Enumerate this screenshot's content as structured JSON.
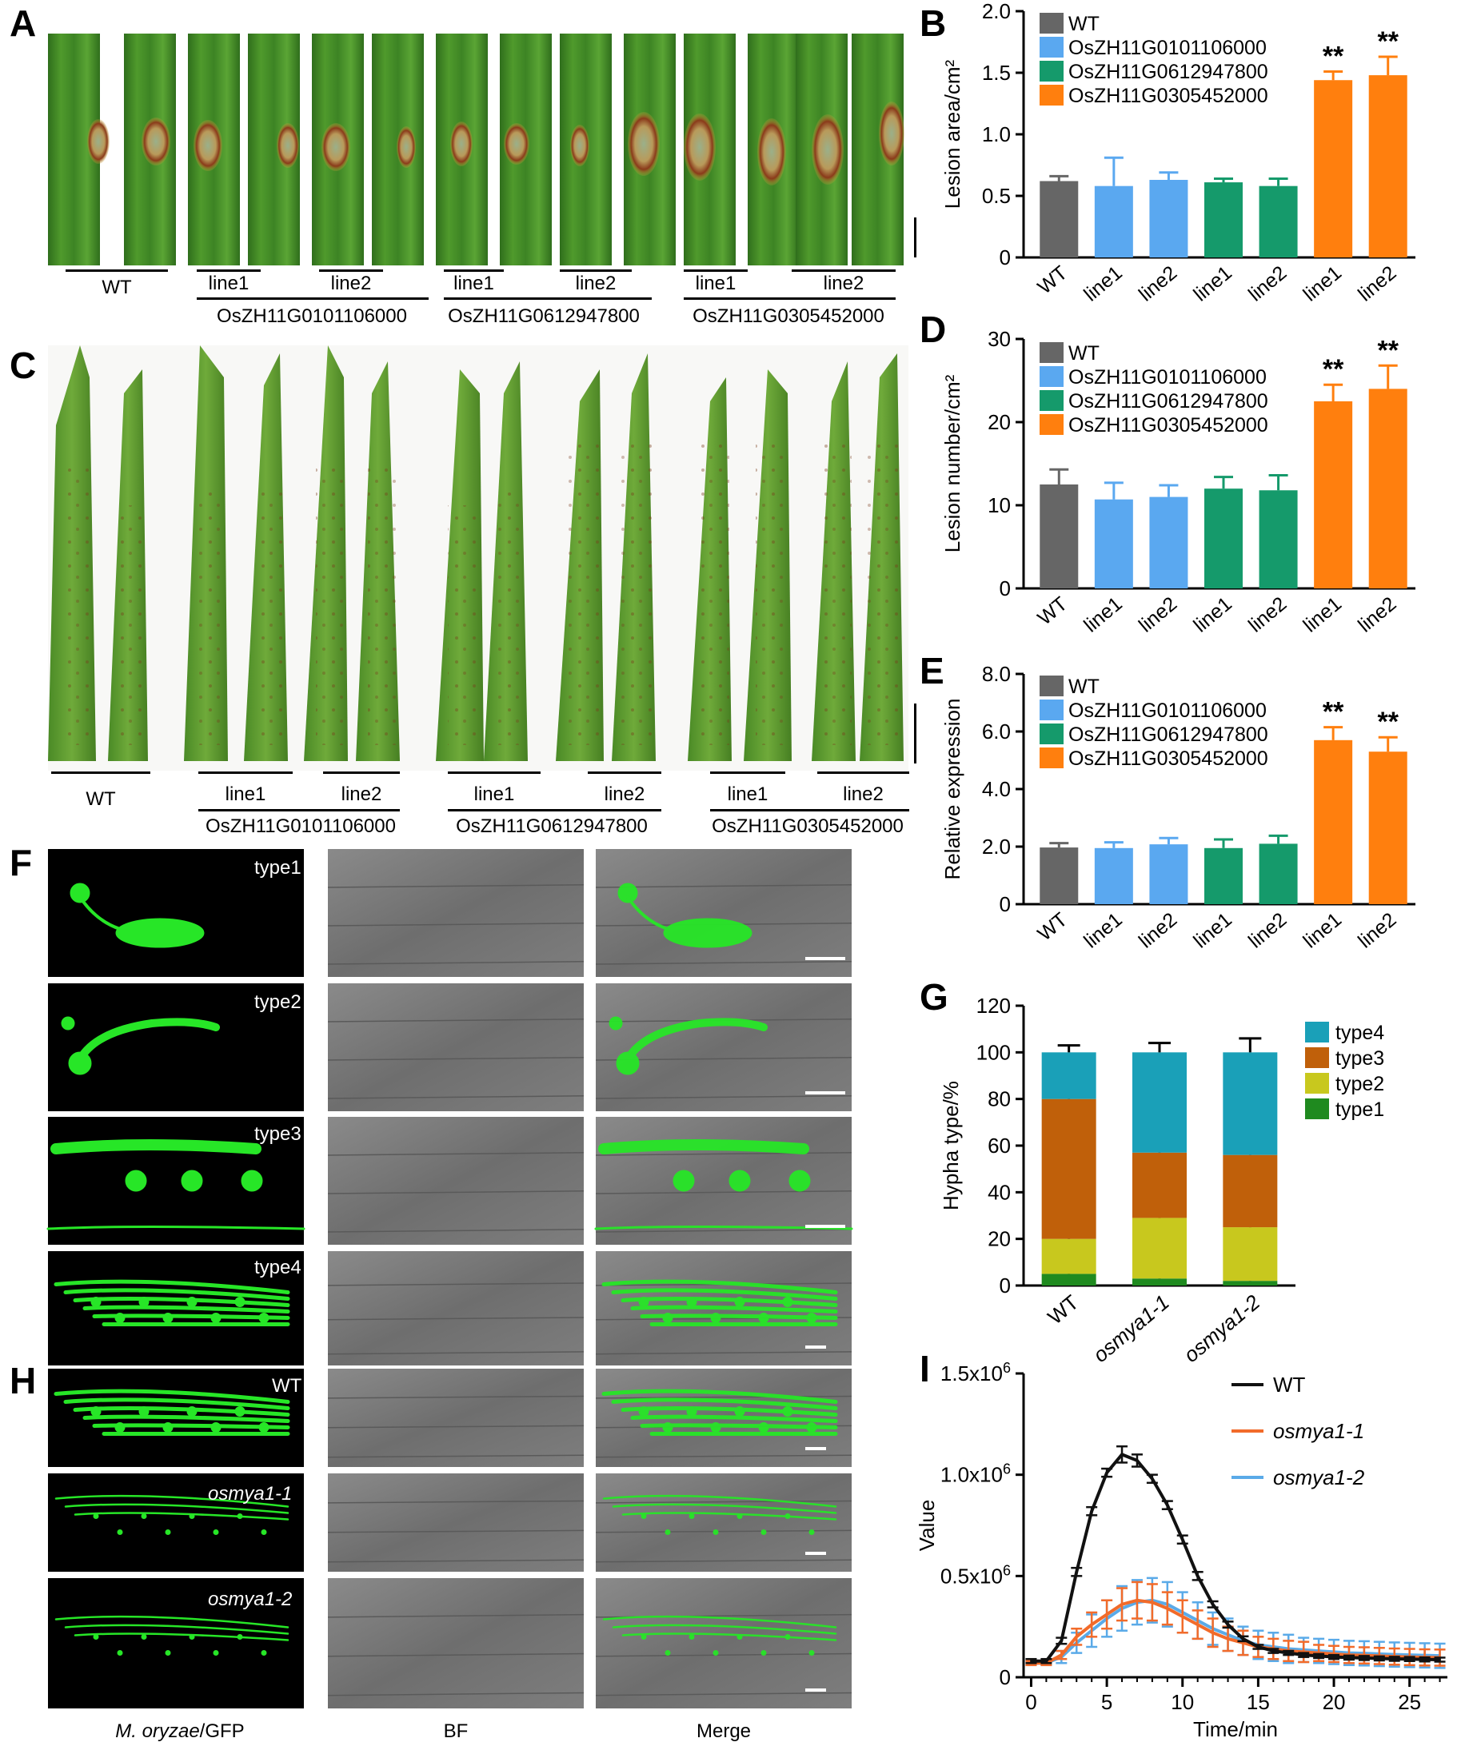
{
  "panels": {
    "A": "A",
    "B": "B",
    "C": "C",
    "D": "D",
    "E": "E",
    "F": "F",
    "G": "G",
    "H": "H",
    "I": "I"
  },
  "labels_A": {
    "wt": "WT",
    "line1": "line1",
    "line2": "line2",
    "gene1": "OsZH11G0101106000",
    "gene2": "OsZH11G0612947800",
    "gene3": "OsZH11G0305452000"
  },
  "micro": {
    "type1": "type1",
    "type2": "type2",
    "type3": "type3",
    "type4": "type4",
    "wt": "WT",
    "osmya1_1": "osmya1-1",
    "osmya1_2": "osmya1-2",
    "col_gfp_italic": "M. oryzae",
    "col_gfp_suffix": "/GFP",
    "col_bf": "BF",
    "col_merge": "Merge"
  },
  "colors": {
    "wt": "#666666",
    "g1": "#5aa8f0",
    "g2": "#159a6b",
    "g3": "#ff7f0e",
    "type1": "#1f8a1f",
    "type2": "#c8c81e",
    "type3": "#c0600a",
    "type4": "#1aa0b8",
    "wt_line": "#111111",
    "osmya1_1_line": "#f26b2a",
    "osmya1_2_line": "#5aaae8"
  },
  "chart_data": [
    {
      "id": "B",
      "type": "bar",
      "ylabel": "Lesion area/cm²",
      "ylim": [
        0,
        2.0
      ],
      "yticks": [
        "0",
        "0.5",
        "1.0",
        "1.5",
        "2.0"
      ],
      "categories": [
        "WT",
        "line1",
        "line2",
        "line1",
        "line2",
        "line1",
        "line2"
      ],
      "values": [
        0.62,
        0.58,
        0.63,
        0.61,
        0.58,
        1.44,
        1.48
      ],
      "errors": [
        0.04,
        0.23,
        0.06,
        0.03,
        0.06,
        0.07,
        0.15
      ],
      "color_groups": [
        "wt",
        "g1",
        "g1",
        "g2",
        "g2",
        "g3",
        "g3"
      ],
      "annotations": [
        "",
        "",
        "",
        "",
        "",
        "**",
        "**"
      ],
      "legend": [
        "WT",
        "OsZH11G0101106000",
        "OsZH11G0612947800",
        "OsZH11G0305452000"
      ]
    },
    {
      "id": "D",
      "type": "bar",
      "ylabel": "Lesion number/cm²",
      "ylim": [
        0,
        30
      ],
      "yticks": [
        "0",
        "10",
        "20",
        "30"
      ],
      "categories": [
        "WT",
        "line1",
        "line2",
        "line1",
        "line2",
        "line1",
        "line2"
      ],
      "values": [
        12.5,
        10.7,
        11.0,
        12.0,
        11.8,
        22.5,
        24.0
      ],
      "errors": [
        1.8,
        2.0,
        1.4,
        1.4,
        1.8,
        2.0,
        2.8
      ],
      "color_groups": [
        "wt",
        "g1",
        "g1",
        "g2",
        "g2",
        "g3",
        "g3"
      ],
      "annotations": [
        "",
        "",
        "",
        "",
        "",
        "**",
        "**"
      ],
      "legend": [
        "WT",
        "OsZH11G0101106000",
        "OsZH11G0612947800",
        "OsZH11G0305452000"
      ]
    },
    {
      "id": "E",
      "type": "bar",
      "ylabel": "Relative expression",
      "ylim": [
        0,
        8.0
      ],
      "yticks": [
        "0",
        "2.0",
        "4.0",
        "6.0",
        "8.0"
      ],
      "categories": [
        "WT",
        "line1",
        "line2",
        "line1",
        "line2",
        "line1",
        "line2"
      ],
      "values": [
        1.97,
        1.95,
        2.08,
        1.95,
        2.1,
        5.7,
        5.3
      ],
      "errors": [
        0.15,
        0.2,
        0.22,
        0.3,
        0.28,
        0.45,
        0.5
      ],
      "color_groups": [
        "wt",
        "g1",
        "g1",
        "g2",
        "g2",
        "g3",
        "g3"
      ],
      "annotations": [
        "",
        "",
        "",
        "",
        "",
        "**",
        "**"
      ],
      "legend": [
        "WT",
        "OsZH11G0101106000",
        "OsZH11G0612947800",
        "OsZH11G0305452000"
      ]
    },
    {
      "id": "G",
      "type": "bar",
      "stacked": true,
      "ylabel": "Hypha type/%",
      "ylim": [
        0,
        120
      ],
      "yticks": [
        "0",
        "20",
        "40",
        "60",
        "80",
        "100",
        "120"
      ],
      "categories": [
        "WT",
        "osmya1-1",
        "osmya1-2"
      ],
      "series": [
        {
          "name": "type1",
          "values": [
            5,
            3,
            2
          ],
          "errors": [
            1.5,
            1.5,
            1.5
          ]
        },
        {
          "name": "type2",
          "values": [
            15,
            26,
            23
          ],
          "errors": [
            3,
            1,
            5
          ]
        },
        {
          "name": "type3",
          "values": [
            60,
            28,
            31
          ],
          "errors": [
            5,
            4,
            4
          ]
        },
        {
          "name": "type4",
          "values": [
            20,
            43,
            44
          ],
          "errors": [
            3,
            4,
            6
          ]
        }
      ],
      "legend": [
        "type4",
        "type3",
        "type2",
        "type1"
      ]
    },
    {
      "id": "I",
      "type": "line",
      "ylabel": "Value",
      "xlabel": "Time/min",
      "xlim": [
        -0.5,
        27.5
      ],
      "ylim": [
        0,
        1500000
      ],
      "xticks": [
        "0",
        "5",
        "10",
        "15",
        "20",
        "25"
      ],
      "yticks": [
        {
          "base": "0",
          "exp": ""
        },
        {
          "base": "0.5x10",
          "exp": "6"
        },
        {
          "base": "1.0x10",
          "exp": "6"
        },
        {
          "base": "1.5x10",
          "exp": "6"
        }
      ],
      "x": [
        0,
        1,
        2,
        3,
        4,
        5,
        6,
        7,
        8,
        9,
        10,
        11,
        12,
        13,
        14,
        15,
        16,
        17,
        18,
        19,
        20,
        21,
        22,
        23,
        24,
        25,
        26,
        27
      ],
      "series": [
        {
          "name": "WT",
          "values": [
            80000,
            80000,
            180000,
            520000,
            820000,
            1010000,
            1100000,
            1070000,
            980000,
            850000,
            680000,
            500000,
            360000,
            260000,
            190000,
            150000,
            130000,
            120000,
            110000,
            105000,
            100000,
            97000,
            95000,
            93000,
            91000,
            90000,
            88000,
            87000
          ],
          "errors": [
            10000,
            10000,
            15000,
            20000,
            20000,
            20000,
            40000,
            30000,
            20000,
            20000,
            20000,
            20000,
            15000,
            15000,
            12000,
            10000,
            10000,
            10000,
            10000,
            10000,
            10000,
            10000,
            10000,
            10000,
            10000,
            10000,
            10000,
            10000
          ]
        },
        {
          "name": "osmya1-1",
          "values": [
            70000,
            70000,
            110000,
            200000,
            260000,
            310000,
            360000,
            380000,
            370000,
            340000,
            300000,
            260000,
            220000,
            190000,
            170000,
            150000,
            140000,
            130000,
            125000,
            120000,
            115000,
            110000,
            108000,
            105000,
            102000,
            100000,
            98000,
            97000
          ],
          "errors": [
            10000,
            10000,
            20000,
            40000,
            60000,
            70000,
            80000,
            90000,
            90000,
            80000,
            80000,
            70000,
            70000,
            60000,
            60000,
            50000,
            50000,
            50000,
            50000,
            40000,
            40000,
            40000,
            40000,
            40000,
            40000,
            40000,
            40000,
            40000
          ]
        },
        {
          "name": "osmya1-2",
          "values": [
            70000,
            70000,
            100000,
            170000,
            230000,
            290000,
            340000,
            370000,
            380000,
            360000,
            320000,
            280000,
            240000,
            210000,
            180000,
            160000,
            150000,
            140000,
            135000,
            130000,
            125000,
            120000,
            118000,
            115000,
            112000,
            110000,
            108000,
            106000
          ],
          "errors": [
            10000,
            10000,
            30000,
            50000,
            80000,
            90000,
            110000,
            110000,
            110000,
            110000,
            100000,
            90000,
            80000,
            80000,
            70000,
            70000,
            70000,
            70000,
            60000,
            60000,
            60000,
            60000,
            60000,
            60000,
            60000,
            60000,
            60000,
            60000
          ]
        }
      ]
    }
  ]
}
